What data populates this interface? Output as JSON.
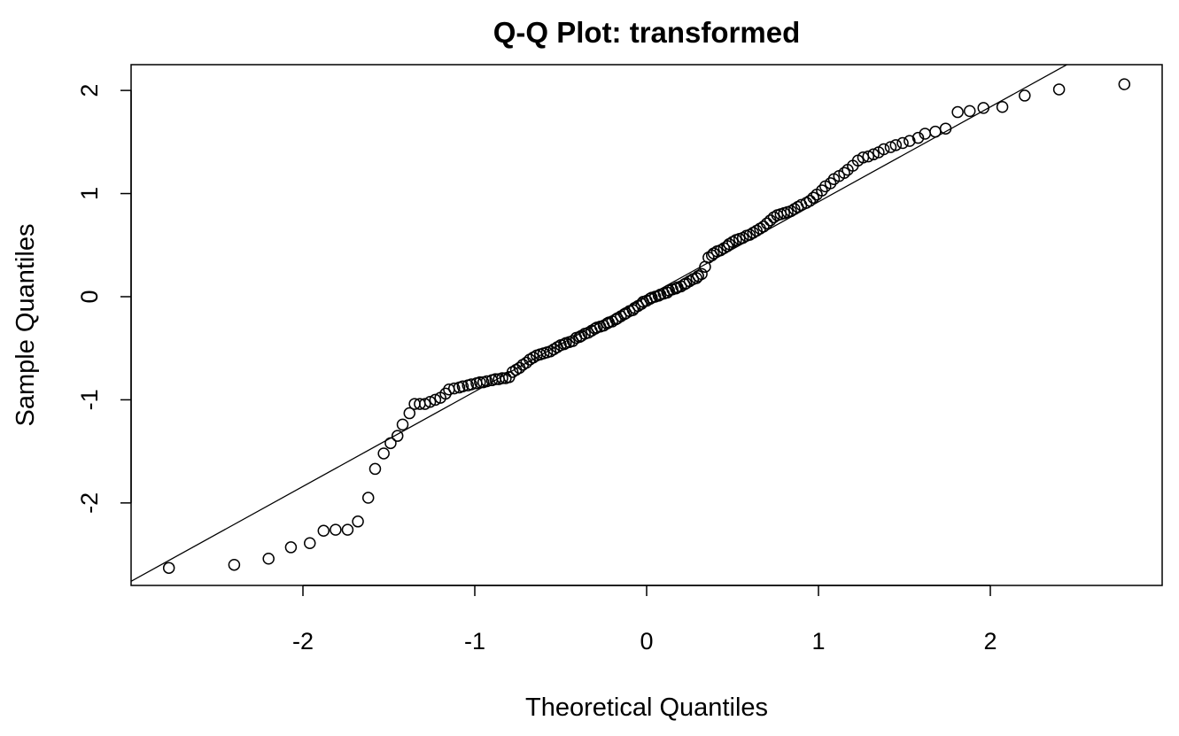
{
  "chart_data": {
    "type": "scatter",
    "title": "Q-Q Plot: transformed",
    "xlabel": "Theoretical Quantiles",
    "ylabel": "Sample Quantiles",
    "xlim": [
      -3.0,
      3.0
    ],
    "ylim": [
      -2.8,
      2.25
    ],
    "xticks": [
      -2,
      -1,
      0,
      1,
      2
    ],
    "xtick_labels": [
      "-2",
      "-1",
      "0",
      "1",
      "2"
    ],
    "yticks": [
      -2,
      -1,
      0,
      1,
      2
    ],
    "ytick_labels": [
      "-2",
      "-1",
      "0",
      "1",
      "2"
    ],
    "grid": false,
    "marker": "open-circle",
    "reference_line": {
      "intercept": 0.0,
      "slope": 0.92
    },
    "points": [
      [
        -2.78,
        -2.63
      ],
      [
        -2.4,
        -2.6
      ],
      [
        -2.2,
        -2.54
      ],
      [
        -2.07,
        -2.43
      ],
      [
        -1.96,
        -2.39
      ],
      [
        -1.88,
        -2.27
      ],
      [
        -1.81,
        -2.26
      ],
      [
        -1.74,
        -2.26
      ],
      [
        -1.68,
        -2.18
      ],
      [
        -1.62,
        -1.95
      ],
      [
        -1.58,
        -1.67
      ],
      [
        -1.53,
        -1.52
      ],
      [
        -1.49,
        -1.42
      ],
      [
        -1.45,
        -1.35
      ],
      [
        -1.42,
        -1.24
      ],
      [
        -1.38,
        -1.13
      ],
      [
        -1.35,
        -1.04
      ],
      [
        -1.32,
        -1.04
      ],
      [
        -1.29,
        -1.04
      ],
      [
        -1.26,
        -1.02
      ],
      [
        -1.23,
        -1.0
      ],
      [
        -1.2,
        -0.98
      ],
      [
        -1.17,
        -0.94
      ],
      [
        -1.15,
        -0.9
      ],
      [
        -1.12,
        -0.89
      ],
      [
        -1.09,
        -0.88
      ],
      [
        -1.07,
        -0.87
      ],
      [
        -1.04,
        -0.86
      ],
      [
        -1.02,
        -0.85
      ],
      [
        -0.99,
        -0.84
      ],
      [
        -0.97,
        -0.83
      ],
      [
        -0.95,
        -0.83
      ],
      [
        -0.93,
        -0.82
      ],
      [
        -0.9,
        -0.81
      ],
      [
        -0.88,
        -0.8
      ],
      [
        -0.86,
        -0.8
      ],
      [
        -0.84,
        -0.79
      ],
      [
        -0.82,
        -0.79
      ],
      [
        -0.8,
        -0.78
      ],
      [
        -0.78,
        -0.73
      ],
      [
        -0.76,
        -0.71
      ],
      [
        -0.74,
        -0.69
      ],
      [
        -0.72,
        -0.66
      ],
      [
        -0.7,
        -0.64
      ],
      [
        -0.68,
        -0.61
      ],
      [
        -0.66,
        -0.59
      ],
      [
        -0.64,
        -0.57
      ],
      [
        -0.62,
        -0.56
      ],
      [
        -0.6,
        -0.55
      ],
      [
        -0.58,
        -0.54
      ],
      [
        -0.56,
        -0.53
      ],
      [
        -0.54,
        -0.51
      ],
      [
        -0.52,
        -0.49
      ],
      [
        -0.5,
        -0.47
      ],
      [
        -0.48,
        -0.46
      ],
      [
        -0.47,
        -0.45
      ],
      [
        -0.45,
        -0.44
      ],
      [
        -0.43,
        -0.43
      ],
      [
        -0.41,
        -0.4
      ],
      [
        -0.39,
        -0.39
      ],
      [
        -0.38,
        -0.38
      ],
      [
        -0.36,
        -0.36
      ],
      [
        -0.34,
        -0.35
      ],
      [
        -0.32,
        -0.33
      ],
      [
        -0.3,
        -0.31
      ],
      [
        -0.29,
        -0.3
      ],
      [
        -0.27,
        -0.29
      ],
      [
        -0.25,
        -0.28
      ],
      [
        -0.23,
        -0.26
      ],
      [
        -0.22,
        -0.25
      ],
      [
        -0.2,
        -0.24
      ],
      [
        -0.18,
        -0.22
      ],
      [
        -0.17,
        -0.21
      ],
      [
        -0.15,
        -0.19
      ],
      [
        -0.13,
        -0.17
      ],
      [
        -0.12,
        -0.16
      ],
      [
        -0.1,
        -0.14
      ],
      [
        -0.08,
        -0.13
      ],
      [
        -0.07,
        -0.11
      ],
      [
        -0.05,
        -0.09
      ],
      [
        -0.03,
        -0.07
      ],
      [
        -0.02,
        -0.05
      ],
      [
        0.0,
        -0.04
      ],
      [
        0.02,
        -0.02
      ],
      [
        0.03,
        -0.01
      ],
      [
        0.05,
        0.0
      ],
      [
        0.07,
        0.01
      ],
      [
        0.08,
        0.02
      ],
      [
        0.1,
        0.03
      ],
      [
        0.12,
        0.04
      ],
      [
        0.13,
        0.06
      ],
      [
        0.15,
        0.07
      ],
      [
        0.17,
        0.08
      ],
      [
        0.18,
        0.09
      ],
      [
        0.2,
        0.1
      ],
      [
        0.22,
        0.12
      ],
      [
        0.23,
        0.13
      ],
      [
        0.25,
        0.15
      ],
      [
        0.27,
        0.17
      ],
      [
        0.29,
        0.18
      ],
      [
        0.3,
        0.2
      ],
      [
        0.32,
        0.22
      ],
      [
        0.34,
        0.29
      ],
      [
        0.36,
        0.38
      ],
      [
        0.38,
        0.4
      ],
      [
        0.39,
        0.42
      ],
      [
        0.41,
        0.44
      ],
      [
        0.43,
        0.45
      ],
      [
        0.45,
        0.47
      ],
      [
        0.47,
        0.49
      ],
      [
        0.48,
        0.51
      ],
      [
        0.5,
        0.53
      ],
      [
        0.52,
        0.55
      ],
      [
        0.54,
        0.56
      ],
      [
        0.56,
        0.57
      ],
      [
        0.58,
        0.59
      ],
      [
        0.6,
        0.6
      ],
      [
        0.62,
        0.62
      ],
      [
        0.64,
        0.64
      ],
      [
        0.66,
        0.66
      ],
      [
        0.68,
        0.68
      ],
      [
        0.7,
        0.71
      ],
      [
        0.72,
        0.74
      ],
      [
        0.74,
        0.77
      ],
      [
        0.76,
        0.79
      ],
      [
        0.78,
        0.8
      ],
      [
        0.8,
        0.81
      ],
      [
        0.82,
        0.82
      ],
      [
        0.84,
        0.83
      ],
      [
        0.86,
        0.85
      ],
      [
        0.88,
        0.87
      ],
      [
        0.9,
        0.89
      ],
      [
        0.93,
        0.91
      ],
      [
        0.95,
        0.93
      ],
      [
        0.97,
        0.96
      ],
      [
        0.99,
        0.99
      ],
      [
        1.02,
        1.03
      ],
      [
        1.04,
        1.07
      ],
      [
        1.07,
        1.1
      ],
      [
        1.09,
        1.14
      ],
      [
        1.12,
        1.17
      ],
      [
        1.15,
        1.2
      ],
      [
        1.17,
        1.23
      ],
      [
        1.2,
        1.27
      ],
      [
        1.23,
        1.32
      ],
      [
        1.26,
        1.35
      ],
      [
        1.29,
        1.36
      ],
      [
        1.32,
        1.38
      ],
      [
        1.35,
        1.4
      ],
      [
        1.38,
        1.43
      ],
      [
        1.42,
        1.45
      ],
      [
        1.45,
        1.47
      ],
      [
        1.49,
        1.49
      ],
      [
        1.53,
        1.51
      ],
      [
        1.58,
        1.54
      ],
      [
        1.62,
        1.58
      ],
      [
        1.68,
        1.6
      ],
      [
        1.74,
        1.63
      ],
      [
        1.81,
        1.79
      ],
      [
        1.88,
        1.8
      ],
      [
        1.96,
        1.83
      ],
      [
        2.07,
        1.84
      ],
      [
        2.2,
        1.95
      ],
      [
        2.4,
        2.01
      ],
      [
        2.78,
        2.06
      ]
    ]
  }
}
